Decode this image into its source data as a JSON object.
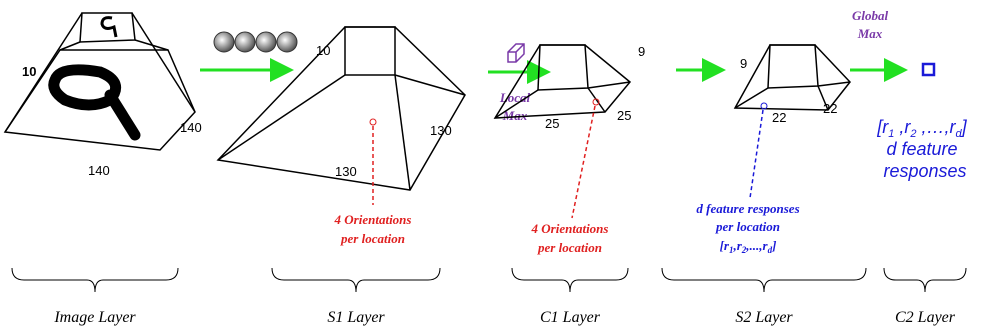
{
  "image_layer": {
    "depth": "10",
    "width": "140",
    "height": "140"
  },
  "s1": {
    "depth": "10",
    "width": "130",
    "height": "130",
    "note": [
      "4 Orientations",
      "per location"
    ]
  },
  "local_max": [
    "Local",
    "Max"
  ],
  "c1": {
    "depth": "9",
    "width": "25",
    "height": "25",
    "note": [
      "4 Orientations",
      "per location"
    ]
  },
  "s2": {
    "depth": "9",
    "width": "22",
    "height": "22",
    "note": [
      "d feature responses",
      "per location"
    ],
    "vector": [
      "[r",
      "1",
      ",r",
      "2",
      ",...,r",
      "d",
      "]"
    ]
  },
  "global_max": [
    "Global",
    "Max"
  ],
  "c2": {
    "vector": [
      "[r",
      "1",
      " ,r",
      "2",
      " ,…,r",
      "d",
      "]"
    ],
    "note": [
      "d feature",
      "responses"
    ]
  },
  "layers": [
    "Image Layer",
    "S1 Layer",
    "C1 Layer",
    "S2 Layer",
    "C2 Layer"
  ]
}
